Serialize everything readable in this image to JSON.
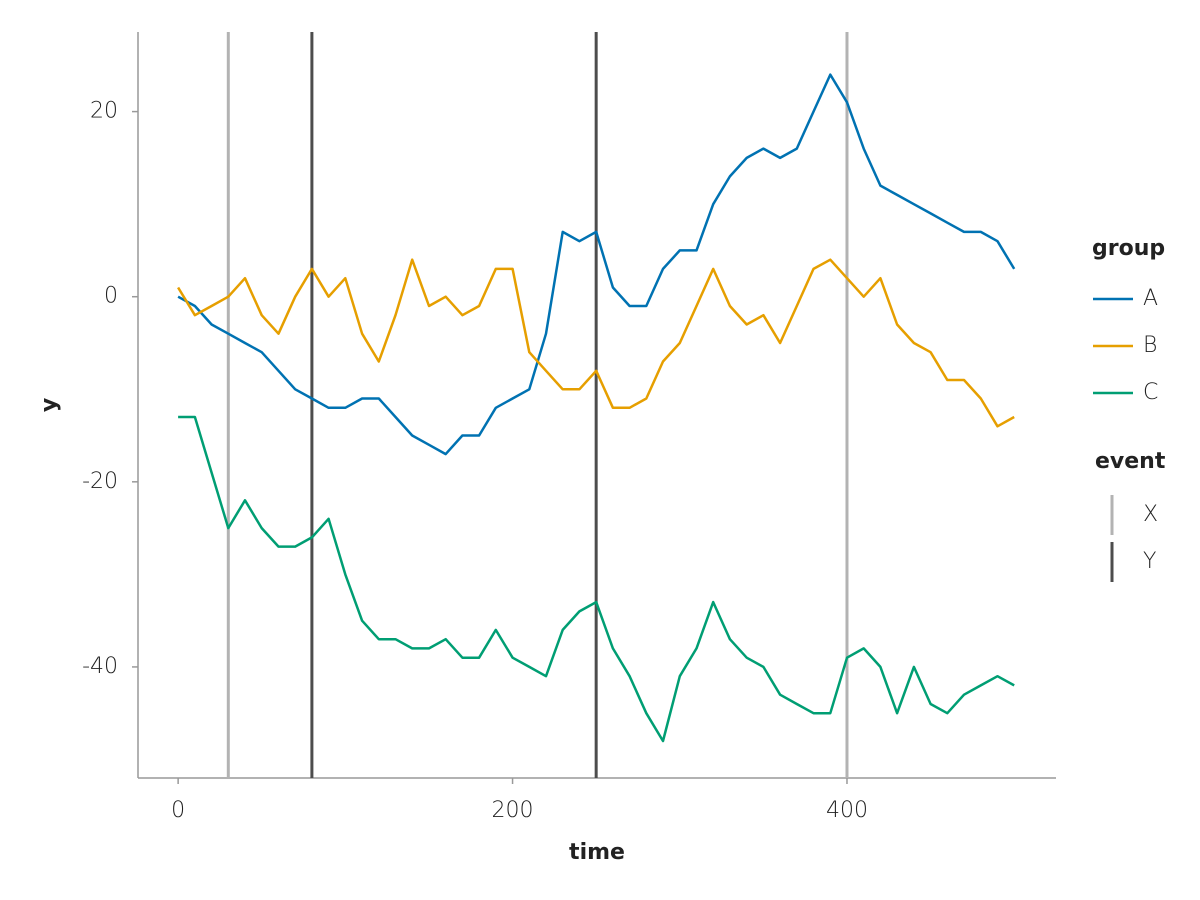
{
  "chart_data": {
    "type": "line",
    "x_label": "time",
    "y_label": "y",
    "x": [
      0,
      10,
      20,
      30,
      40,
      50,
      60,
      70,
      80,
      90,
      100,
      110,
      120,
      130,
      140,
      150,
      160,
      170,
      180,
      190,
      200,
      210,
      220,
      230,
      240,
      250,
      260,
      270,
      280,
      290,
      300,
      310,
      320,
      330,
      340,
      350,
      360,
      370,
      380,
      390,
      400,
      410,
      420,
      430,
      440,
      450,
      460,
      470,
      480,
      490,
      500
    ],
    "series": [
      {
        "name": "A",
        "color": "#0072b2",
        "values": [
          0,
          -1,
          -3,
          -4,
          -5,
          -6,
          -8,
          -10,
          -11,
          -12,
          -12,
          -11,
          -11,
          -13,
          -15,
          -16,
          -17,
          -15,
          -15,
          -12,
          -11,
          -10,
          -4,
          7,
          6,
          7,
          1,
          -1,
          -1,
          3,
          5,
          5,
          10,
          13,
          15,
          16,
          15,
          16,
          20,
          24,
          21,
          16,
          12,
          11,
          10,
          9,
          8,
          7,
          7,
          6,
          3
        ]
      },
      {
        "name": "B",
        "color": "#e69f00",
        "values": [
          1,
          -2,
          -1,
          0,
          2,
          -2,
          -4,
          0,
          3,
          0,
          2,
          -4,
          -7,
          -2,
          4,
          -1,
          0,
          -2,
          -1,
          3,
          3,
          -6,
          -8,
          -10,
          -10,
          -8,
          -12,
          -12,
          -11,
          -7,
          -5,
          -1,
          3,
          -1,
          -3,
          -2,
          -5,
          -1,
          3,
          4,
          2,
          0,
          2,
          -3,
          -5,
          -6,
          -9,
          -9,
          -11,
          -14,
          -13
        ]
      },
      {
        "name": "C",
        "color": "#009e73",
        "values": [
          -13,
          -13,
          -19,
          -25,
          -22,
          -25,
          -27,
          -27,
          -26,
          -24,
          -30,
          -35,
          -37,
          -37,
          -38,
          -38,
          -37,
          -39,
          -39,
          -36,
          -39,
          -40,
          -41,
          -36,
          -34,
          -33,
          -38,
          -41,
          -45,
          -48,
          -41,
          -38,
          -33,
          -37,
          -39,
          -40,
          -43,
          -44,
          -45,
          -45,
          -39,
          -38,
          -40,
          -45,
          -40,
          -44,
          -45,
          -43,
          -42,
          -41,
          -42
        ]
      }
    ],
    "legend_title": "group",
    "events": {
      "title": "event",
      "series": [
        {
          "name": "X",
          "color": "#b3b3b3",
          "x": [
            30,
            400
          ]
        },
        {
          "name": "Y",
          "color": "#4d4d4d",
          "x": [
            80,
            250
          ]
        }
      ]
    },
    "xlim": [
      -24,
      525
    ],
    "ylim": [
      -52,
      28.6
    ],
    "xticks": [
      0,
      200,
      400
    ],
    "yticks": [
      -40,
      -20,
      0,
      20
    ],
    "grid": false,
    "legend_position": "right"
  }
}
